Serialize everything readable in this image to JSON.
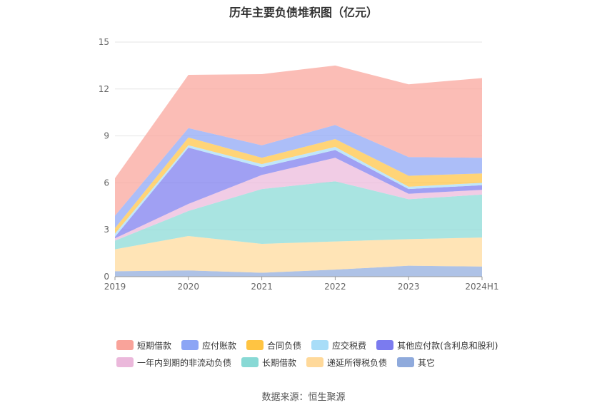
{
  "chart_data": {
    "type": "area",
    "stacked": true,
    "title": "历年主要负债堆积图（亿元）",
    "categories": [
      "2019",
      "2020",
      "2021",
      "2022",
      "2023",
      "2024H1"
    ],
    "ylim": [
      0,
      15
    ],
    "yticks": [
      0,
      3,
      6,
      9,
      12,
      15
    ],
    "grid": true,
    "legend_position": "bottom",
    "series": [
      {
        "name": "其它",
        "color": "#8FAADC",
        "values": [
          0.35,
          0.4,
          0.25,
          0.45,
          0.7,
          0.65
        ]
      },
      {
        "name": "递延所得税负债",
        "color": "#FFD99A",
        "values": [
          1.4,
          2.2,
          1.85,
          1.8,
          1.7,
          1.85
        ]
      },
      {
        "name": "长期借款",
        "color": "#88D9D5",
        "values": [
          0.55,
          1.6,
          3.5,
          3.85,
          2.55,
          2.75
        ]
      },
      {
        "name": "一年内到期的非流动负债",
        "color": "#EBB8DB",
        "values": [
          0.15,
          0.45,
          0.9,
          1.5,
          0.35,
          0.3
        ]
      },
      {
        "name": "其他应付款(含利息和股利)",
        "color": "#7B7BEF",
        "values": [
          0.1,
          3.6,
          0.5,
          0.5,
          0.3,
          0.3
        ]
      },
      {
        "name": "应交税费",
        "color": "#A8DDF8",
        "values": [
          0.2,
          0.15,
          0.2,
          0.2,
          0.15,
          0.15
        ]
      },
      {
        "name": "合同负债",
        "color": "#FFC442",
        "values": [
          0.35,
          0.5,
          0.4,
          0.5,
          0.7,
          0.6
        ]
      },
      {
        "name": "应付账款",
        "color": "#8CA5F5",
        "values": [
          0.8,
          0.6,
          0.8,
          0.9,
          1.2,
          1.0
        ]
      },
      {
        "name": "短期借款",
        "color": "#F9A39A",
        "values": [
          2.4,
          3.4,
          4.55,
          3.8,
          4.65,
          5.1
        ]
      }
    ],
    "legend_order": [
      "短期借款",
      "应付账款",
      "合同负债",
      "应交税费",
      "其他应付款(含利息和股利)",
      "一年内到期的非流动负债",
      "长期借款",
      "递延所得税负债",
      "其它"
    ]
  },
  "source_text": "数据来源：恒生聚源"
}
